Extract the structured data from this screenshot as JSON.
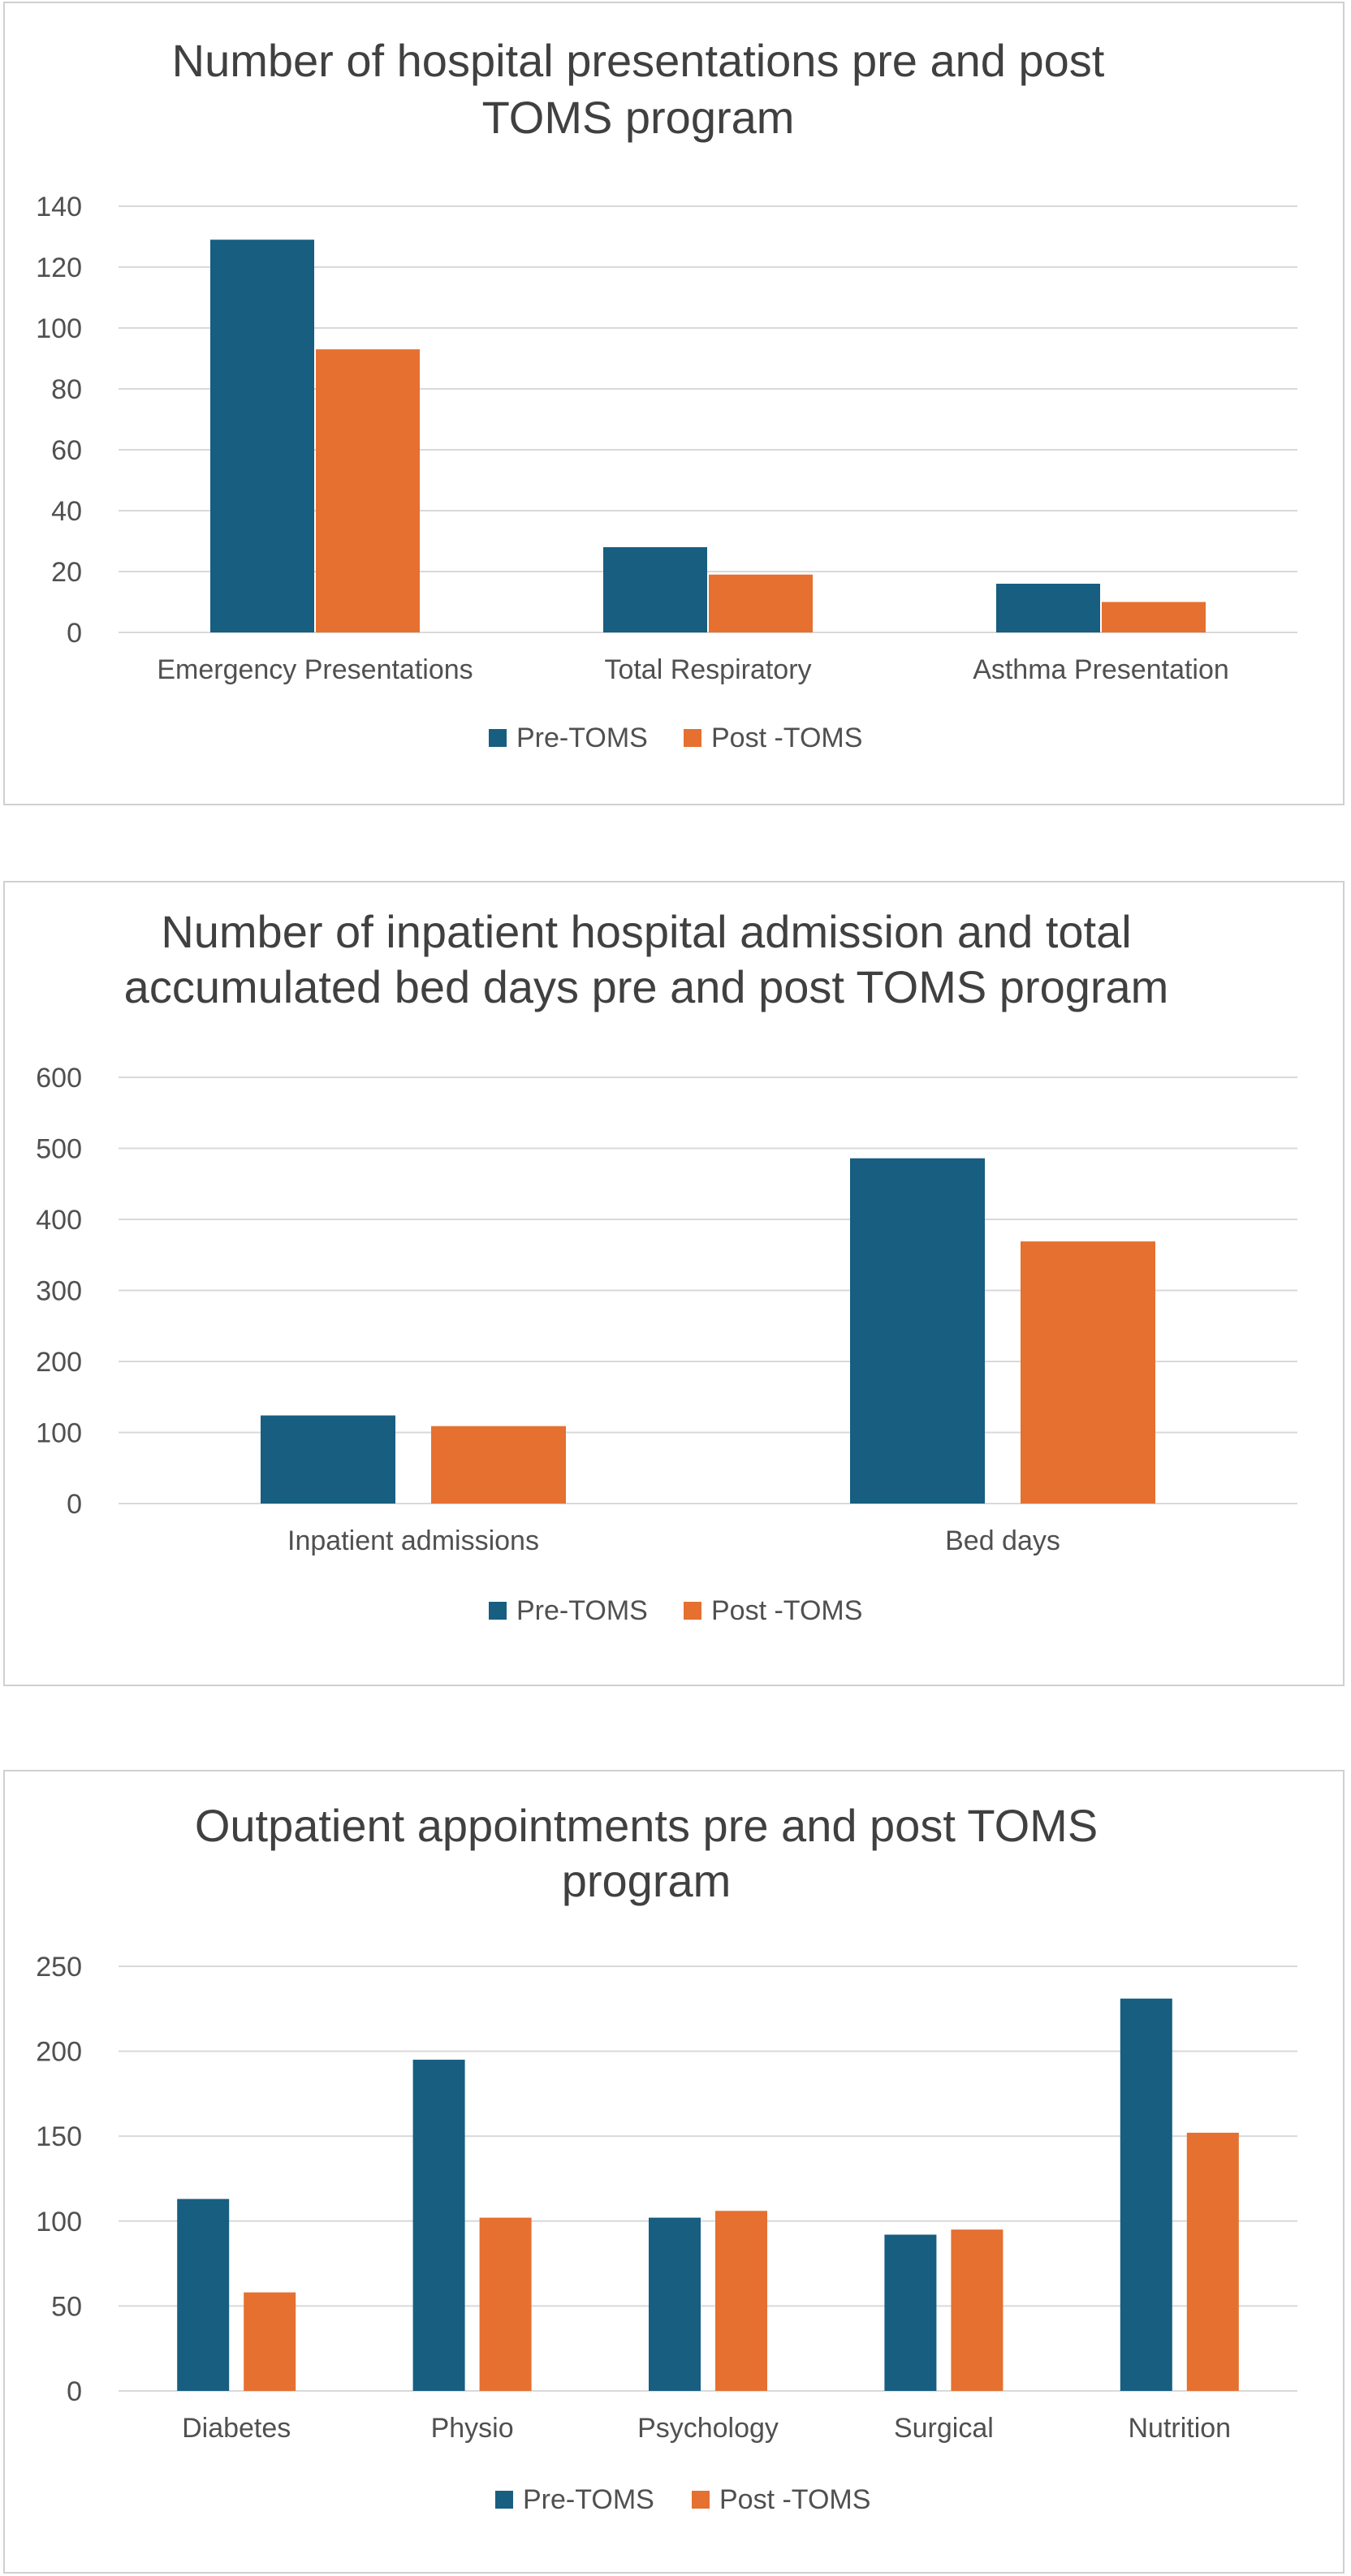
{
  "colors": {
    "pre": "#175e81",
    "post": "#e57030",
    "grid": "#d9d9d9",
    "text": "#404040"
  },
  "chart_data": [
    {
      "type": "bar",
      "title": [
        "Number of  hospital presentations pre and post",
        "TOMS program"
      ],
      "categories": [
        "Emergency Presentations",
        "Total Respiratory",
        "Asthma Presentation"
      ],
      "series": [
        {
          "name": "Pre-TOMS",
          "values": [
            129,
            28,
            16
          ]
        },
        {
          "name": "Post -TOMS",
          "values": [
            93,
            19,
            10
          ]
        }
      ],
      "yticks": [
        "0",
        "20",
        "40",
        "60",
        "80",
        "100",
        "120",
        "140"
      ],
      "ylim": [
        0,
        140
      ],
      "xlabel": "",
      "ylabel": "",
      "grid": true,
      "legend": "bottom"
    },
    {
      "type": "bar",
      "title": [
        "Number of inpatient hospital admission and total",
        "accumulated bed days pre and post TOMS program"
      ],
      "categories": [
        "Inpatient admissions",
        "Bed days"
      ],
      "series": [
        {
          "name": "Pre-TOMS",
          "values": [
            124,
            486
          ]
        },
        {
          "name": "Post -TOMS",
          "values": [
            109,
            369
          ]
        }
      ],
      "yticks": [
        "0",
        "100",
        "200",
        "300",
        "400",
        "500",
        "600"
      ],
      "ylim": [
        0,
        600
      ],
      "xlabel": "",
      "ylabel": "",
      "grid": true,
      "legend": "bottom"
    },
    {
      "type": "bar",
      "title": [
        "Outpatient appointments pre and post TOMS",
        "program"
      ],
      "categories": [
        "Diabetes",
        "Physio",
        "Psychology",
        "Surgical",
        "Nutrition"
      ],
      "series": [
        {
          "name": "Pre-TOMS",
          "values": [
            113,
            195,
            102,
            92,
            231
          ]
        },
        {
          "name": "Post -TOMS",
          "values": [
            58,
            102,
            106,
            95,
            152
          ]
        }
      ],
      "yticks": [
        "0",
        "50",
        "100",
        "150",
        "200",
        "250"
      ],
      "ylim": [
        0,
        250
      ],
      "xlabel": "",
      "ylabel": "",
      "grid": true,
      "legend": "bottom"
    }
  ]
}
